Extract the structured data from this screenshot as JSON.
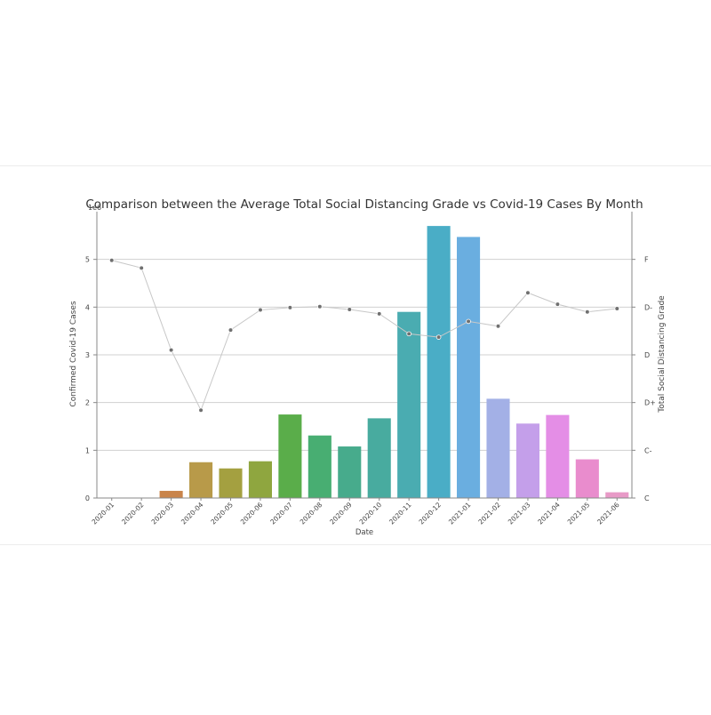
{
  "chart_data": {
    "type": "bar",
    "title": "Comparison between the Average Total Social Distancing Grade vs Covid-19 Cases By Month",
    "xlabel": "Date",
    "ylabel": "Confirmed Covid-19 Cases",
    "y_scale_note": "1e6",
    "ylim": [
      0,
      6
    ],
    "yticks": [
      "0",
      "1",
      "2",
      "3",
      "4",
      "5"
    ],
    "y2label": "Total Social Distancing Grade",
    "y2lim": [
      0,
      6
    ],
    "y2ticks": [
      "C",
      "C-",
      "D+",
      "D",
      "D-",
      "F"
    ],
    "grid": true,
    "categories": [
      "2020-01",
      "2020-02",
      "2020-03",
      "2020-04",
      "2020-05",
      "2020-06",
      "2020-07",
      "2020-08",
      "2020-09",
      "2020-10",
      "2020-11",
      "2020-12",
      "2021-01",
      "2021-02",
      "2021-03",
      "2021-04",
      "2021-05",
      "2021-06"
    ],
    "series": [
      {
        "type": "bar",
        "axis": "left",
        "values": [
          0,
          0,
          0.15,
          0.75,
          0.62,
          0.77,
          1.75,
          1.31,
          1.08,
          1.67,
          3.9,
          5.7,
          5.47,
          2.08,
          1.56,
          1.74,
          0.81,
          0.12
        ],
        "colors": [
          "#e8a2a0",
          "#d98b71",
          "#c9844b",
          "#b89a49",
          "#a4a040",
          "#8fa63f",
          "#5aad4a",
          "#48ae72",
          "#47ab8c",
          "#48ab9f",
          "#4aacb1",
          "#4aadc6",
          "#6aaee0",
          "#a3b0e6",
          "#c49fea",
          "#e48ee6",
          "#e98ccd",
          "#e89ac7"
        ]
      },
      {
        "type": "line",
        "axis": "right",
        "values": [
          4.98,
          4.82,
          3.1,
          1.84,
          3.52,
          3.94,
          3.99,
          4.01,
          3.95,
          3.86,
          3.44,
          3.37,
          3.7,
          3.6,
          4.3,
          4.06,
          3.9,
          3.97
        ],
        "color": "#c8c8c8"
      }
    ]
  }
}
